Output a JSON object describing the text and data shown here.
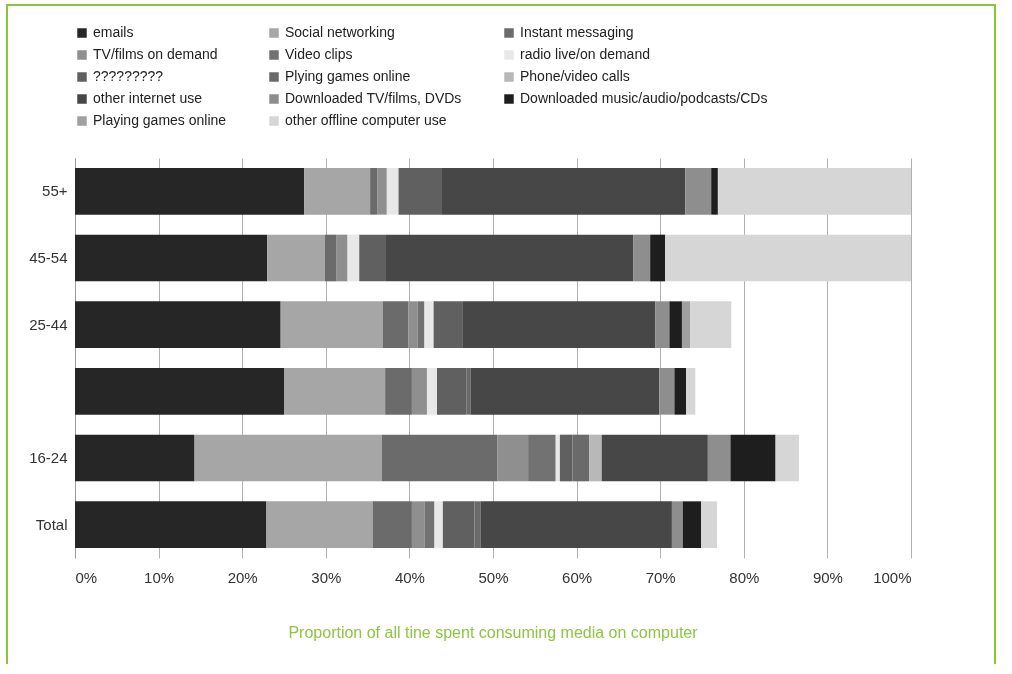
{
  "chart_data": {
    "type": "bar",
    "orientation": "horizontal",
    "stacked": true,
    "categories": [
      "55+",
      "45-54",
      "25-44",
      null,
      "16-24",
      "Total"
    ],
    "series": [
      {
        "name": "emails",
        "color": "#262626",
        "values": [
          27.4,
          23.0,
          24.6,
          25.0,
          14.3,
          22.9
        ]
      },
      {
        "name": "Social networking",
        "color": "#a6a6a6",
        "values": [
          7.9,
          6.9,
          12.2,
          12.1,
          22.4,
          12.7
        ]
      },
      {
        "name": "Instant messaging",
        "color": "#6b6b6b",
        "values": [
          0.9,
          1.4,
          3.1,
          3.2,
          13.8,
          4.7
        ]
      },
      {
        "name": "TV/films on demand",
        "color": "#8f8f8f",
        "values": [
          1.1,
          1.3,
          1.1,
          1.8,
          3.7,
          1.5
        ]
      },
      {
        "name": "Video clips",
        "color": "#727272",
        "values": [
          null,
          null,
          0.8,
          null,
          3.3,
          1.2
        ]
      },
      {
        "name": "radio live/on demand",
        "color": "#e8e8e8",
        "values": [
          1.4,
          1.4,
          1.1,
          1.2,
          0.5,
          1.0
        ]
      },
      {
        "name": "?????????",
        "color": "#606060",
        "values": [
          5.2,
          3.1,
          3.5,
          3.5,
          1.5,
          3.8
        ]
      },
      {
        "name": "Plying games online",
        "color": "#6a6a6a",
        "values": [
          null,
          null,
          null,
          0.5,
          2.0,
          0.7
        ]
      },
      {
        "name": "Phone/video calls",
        "color": "#b8b8b8",
        "values": [
          null,
          null,
          null,
          null,
          1.5,
          null
        ]
      },
      {
        "name": "other internet use",
        "color": "#474747",
        "values": [
          29.1,
          29.7,
          23.0,
          22.6,
          12.7,
          22.9
        ]
      },
      {
        "name": "Downloaded TV/films, DVDs",
        "color": "#8e8e8e",
        "values": [
          3.1,
          2.0,
          1.7,
          1.8,
          2.7,
          1.3
        ]
      },
      {
        "name": "Downloaded music/audio/podcasts/CDs",
        "color": "#1e1e1e",
        "values": [
          0.8,
          1.8,
          1.5,
          1.4,
          5.4,
          2.2
        ]
      },
      {
        "name": "Playing games online",
        "color": "#a0a0a0",
        "values": [
          null,
          null,
          1.0,
          null,
          null,
          null
        ]
      },
      {
        "name": "other offline computer use",
        "color": "#d6d6d6",
        "values": [
          23.1,
          29.4,
          4.9,
          1.1,
          2.8,
          1.9
        ]
      }
    ],
    "xlim": [
      0,
      100
    ],
    "xticks": [
      {
        "value": 0,
        "label": "0%"
      },
      {
        "value": 10,
        "label": "10%"
      },
      {
        "value": 20,
        "label": "20%"
      },
      {
        "value": 30,
        "label": "30%"
      },
      {
        "value": 40,
        "label": "40%"
      },
      {
        "value": 50,
        "label": "50%"
      },
      {
        "value": 60,
        "label": "60%"
      },
      {
        "value": 70,
        "label": "70%"
      },
      {
        "value": 80,
        "label": "80%"
      },
      {
        "value": 90,
        "label": "90%"
      },
      {
        "value": 100,
        "label": "100%"
      }
    ],
    "grid": "x",
    "legend": "top",
    "annotations": [
      "Proportion of all tine spent consuming media on computer"
    ]
  }
}
